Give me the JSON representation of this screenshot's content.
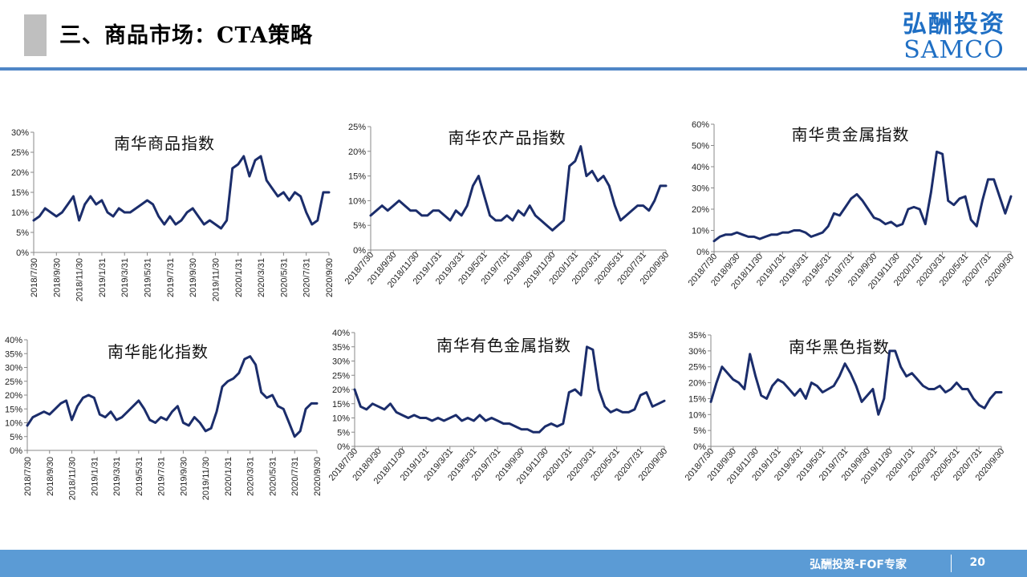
{
  "header": {
    "title": "三、商品市场：CTA策略"
  },
  "logo": {
    "cn": "弘酬投资",
    "en": "SAMCO"
  },
  "footer": {
    "text": "弘酬投资-FOF专家",
    "page": "20"
  },
  "colors": {
    "line": "#1b2d6b",
    "title_bar": "#bfbfbf",
    "top_line": "#4f86c6",
    "footer": "#5b9bd5",
    "logo": "#1f6fc4"
  },
  "chart_data": [
    {
      "type": "line",
      "title": "南华商品指数",
      "ylim": [
        0,
        30
      ],
      "yticks": [
        0,
        5,
        10,
        15,
        20,
        25,
        30
      ],
      "x_labels": [
        "2018/7/30",
        "2018/9/30",
        "2018/11/30",
        "2019/1/31",
        "2019/3/31",
        "2019/5/31",
        "2019/7/31",
        "2019/9/30",
        "2019/11/30",
        "2020/1/31",
        "2020/3/31",
        "2020/5/31",
        "2020/7/31",
        "2020/9/30"
      ],
      "x": [
        0,
        0.25,
        0.5,
        0.75,
        1,
        1.25,
        1.5,
        1.75,
        2,
        2.25,
        2.5,
        2.75,
        3,
        3.25,
        3.5,
        3.75,
        4,
        4.25,
        4.5,
        4.75,
        5,
        5.25,
        5.5,
        5.75,
        6,
        6.25,
        6.5,
        6.75,
        7,
        7.25,
        7.5,
        7.75,
        8,
        8.25,
        8.5,
        8.75,
        9,
        9.25,
        9.5,
        9.75,
        10,
        10.25,
        10.5,
        10.75,
        11,
        11.25,
        11.5,
        11.75,
        12,
        12.25,
        12.5,
        12.75,
        13
      ],
      "values": [
        8,
        9,
        11,
        10,
        9,
        10,
        12,
        14,
        8,
        12,
        14,
        12,
        13,
        10,
        9,
        11,
        10,
        10,
        11,
        12,
        13,
        12,
        9,
        7,
        9,
        7,
        8,
        10,
        11,
        9,
        7,
        8,
        7,
        6,
        8,
        21,
        22,
        24,
        19,
        23,
        24,
        18,
        16,
        14,
        15,
        13,
        15,
        14,
        10,
        7,
        8,
        15,
        15
      ]
    },
    {
      "type": "line",
      "title": "南华农产品指数",
      "ylim": [
        0,
        25
      ],
      "yticks": [
        0,
        5,
        10,
        15,
        20,
        25
      ],
      "x_labels": [
        "2018/7/30",
        "2018/9/30",
        "2018/11/30",
        "2019/1/31",
        "2019/3/31",
        "2019/5/31",
        "2019/7/31",
        "2019/9/30",
        "2019/11/30",
        "2020/1/31",
        "2020/3/31",
        "2020/5/31",
        "2020/7/31",
        "2020/9/30"
      ],
      "x": [
        0,
        0.25,
        0.5,
        0.75,
        1,
        1.25,
        1.5,
        1.75,
        2,
        2.25,
        2.5,
        2.75,
        3,
        3.25,
        3.5,
        3.75,
        4,
        4.25,
        4.5,
        4.75,
        5,
        5.25,
        5.5,
        5.75,
        6,
        6.25,
        6.5,
        6.75,
        7,
        7.25,
        7.5,
        7.75,
        8,
        8.25,
        8.5,
        8.75,
        9,
        9.25,
        9.5,
        9.75,
        10,
        10.25,
        10.5,
        10.75,
        11,
        11.25,
        11.5,
        11.75,
        12,
        12.25,
        12.5,
        12.75,
        13
      ],
      "values": [
        7,
        8,
        9,
        8,
        9,
        10,
        9,
        8,
        8,
        7,
        7,
        8,
        8,
        7,
        6,
        8,
        7,
        9,
        13,
        15,
        11,
        7,
        6,
        6,
        7,
        6,
        8,
        7,
        9,
        7,
        6,
        5,
        4,
        5,
        6,
        17,
        18,
        21,
        15,
        16,
        14,
        15,
        13,
        9,
        6,
        7,
        8,
        9,
        9,
        8,
        10,
        13,
        13
      ]
    },
    {
      "type": "line",
      "title": "南华贵金属指数",
      "ylim": [
        0,
        60
      ],
      "yticks": [
        0,
        10,
        20,
        30,
        40,
        50,
        60
      ],
      "x_labels": [
        "2018/7/30",
        "2018/9/30",
        "2018/11/30",
        "2019/1/31",
        "2019/3/31",
        "2019/5/31",
        "2019/7/31",
        "2019/9/30",
        "2019/11/30",
        "2020/1/31",
        "2020/3/31",
        "2020/5/31",
        "2020/7/31",
        "2020/9/30"
      ],
      "x": [
        0,
        0.25,
        0.5,
        0.75,
        1,
        1.25,
        1.5,
        1.75,
        2,
        2.25,
        2.5,
        2.75,
        3,
        3.25,
        3.5,
        3.75,
        4,
        4.25,
        4.5,
        4.75,
        5,
        5.25,
        5.5,
        5.75,
        6,
        6.25,
        6.5,
        6.75,
        7,
        7.25,
        7.5,
        7.75,
        8,
        8.25,
        8.5,
        8.75,
        9,
        9.25,
        9.5,
        9.75,
        10,
        10.25,
        10.5,
        10.75,
        11,
        11.25,
        11.5,
        11.75,
        12,
        12.25,
        12.5,
        12.75,
        13
      ],
      "values": [
        5,
        7,
        8,
        8,
        9,
        8,
        7,
        7,
        6,
        7,
        8,
        8,
        9,
        9,
        10,
        10,
        9,
        7,
        8,
        9,
        12,
        18,
        17,
        21,
        25,
        27,
        24,
        20,
        16,
        15,
        13,
        14,
        12,
        13,
        20,
        21,
        20,
        13,
        28,
        47,
        46,
        24,
        22,
        25,
        26,
        15,
        12,
        24,
        34,
        34,
        26,
        18,
        26
      ]
    },
    {
      "type": "line",
      "title": "南华能化指数",
      "ylim": [
        0,
        40
      ],
      "yticks": [
        0,
        5,
        10,
        15,
        20,
        25,
        30,
        35,
        40
      ],
      "x_labels": [
        "2018/7/30",
        "2018/9/30",
        "2018/11/30",
        "2019/1/31",
        "2019/3/31",
        "2019/5/31",
        "2019/7/31",
        "2019/9/30",
        "2019/11/30",
        "2020/1/31",
        "2020/3/31",
        "2020/5/31",
        "2020/7/31",
        "2020/9/30"
      ],
      "x": [
        0,
        0.25,
        0.5,
        0.75,
        1,
        1.25,
        1.5,
        1.75,
        2,
        2.25,
        2.5,
        2.75,
        3,
        3.25,
        3.5,
        3.75,
        4,
        4.25,
        4.5,
        4.75,
        5,
        5.25,
        5.5,
        5.75,
        6,
        6.25,
        6.5,
        6.75,
        7,
        7.25,
        7.5,
        7.75,
        8,
        8.25,
        8.5,
        8.75,
        9,
        9.25,
        9.5,
        9.75,
        10,
        10.25,
        10.5,
        10.75,
        11,
        11.25,
        11.5,
        11.75,
        12,
        12.25,
        12.5,
        12.75,
        13
      ],
      "values": [
        9,
        12,
        13,
        14,
        13,
        15,
        17,
        18,
        11,
        16,
        19,
        20,
        19,
        13,
        12,
        14,
        11,
        12,
        14,
        16,
        18,
        15,
        11,
        10,
        12,
        11,
        14,
        16,
        10,
        9,
        12,
        10,
        7,
        8,
        14,
        23,
        25,
        26,
        28,
        33,
        34,
        31,
        21,
        19,
        20,
        16,
        15,
        10,
        5,
        7,
        15,
        17,
        17
      ]
    },
    {
      "type": "line",
      "title": "南华有色金属指数",
      "ylim": [
        0,
        40
      ],
      "yticks": [
        0,
        5,
        10,
        15,
        20,
        25,
        30,
        35,
        40
      ],
      "x_labels": [
        "2018/7/30",
        "2018/9/30",
        "2018/11/30",
        "2019/1/31",
        "2019/3/31",
        "2019/5/31",
        "2019/7/31",
        "2019/9/30",
        "2019/11/30",
        "2020/1/31",
        "2020/3/31",
        "2020/5/31",
        "2020/7/31",
        "2020/9/30"
      ],
      "x": [
        0,
        0.25,
        0.5,
        0.75,
        1,
        1.25,
        1.5,
        1.75,
        2,
        2.25,
        2.5,
        2.75,
        3,
        3.25,
        3.5,
        3.75,
        4,
        4.25,
        4.5,
        4.75,
        5,
        5.25,
        5.5,
        5.75,
        6,
        6.25,
        6.5,
        6.75,
        7,
        7.25,
        7.5,
        7.75,
        8,
        8.25,
        8.5,
        8.75,
        9,
        9.25,
        9.5,
        9.75,
        10,
        10.25,
        10.5,
        10.75,
        11,
        11.25,
        11.5,
        11.75,
        12,
        12.25,
        12.5,
        12.75,
        13
      ],
      "values": [
        20,
        14,
        13,
        15,
        14,
        13,
        15,
        12,
        11,
        10,
        11,
        10,
        10,
        9,
        10,
        9,
        10,
        11,
        9,
        10,
        9,
        11,
        9,
        10,
        9,
        8,
        8,
        7,
        6,
        6,
        5,
        5,
        7,
        8,
        7,
        8,
        19,
        20,
        18,
        35,
        34,
        20,
        14,
        12,
        13,
        12,
        12,
        13,
        18,
        19,
        14,
        15,
        16
      ]
    },
    {
      "type": "line",
      "title": "南华黑色指数",
      "ylim": [
        0,
        35
      ],
      "yticks": [
        0,
        5,
        10,
        15,
        20,
        25,
        30,
        35
      ],
      "x_labels": [
        "2018/7/30",
        "2018/9/30",
        "2018/11/30",
        "2019/1/31",
        "2019/3/31",
        "2019/5/31",
        "2019/7/31",
        "2019/9/30",
        "2019/11/30",
        "2020/1/31",
        "2020/3/31",
        "2020/5/31",
        "2020/7/31",
        "2020/9/30"
      ],
      "x": [
        0,
        0.25,
        0.5,
        0.75,
        1,
        1.25,
        1.5,
        1.75,
        2,
        2.25,
        2.5,
        2.75,
        3,
        3.25,
        3.5,
        3.75,
        4,
        4.25,
        4.5,
        4.75,
        5,
        5.25,
        5.5,
        5.75,
        6,
        6.25,
        6.5,
        6.75,
        7,
        7.25,
        7.5,
        7.75,
        8,
        8.25,
        8.5,
        8.75,
        9,
        9.25,
        9.5,
        9.75,
        10,
        10.25,
        10.5,
        10.75,
        11,
        11.25,
        11.5,
        11.75,
        12,
        12.25,
        12.5,
        12.75,
        13
      ],
      "values": [
        14,
        20,
        25,
        23,
        21,
        20,
        18,
        29,
        22,
        16,
        15,
        19,
        21,
        20,
        18,
        16,
        18,
        15,
        20,
        19,
        17,
        18,
        19,
        22,
        26,
        23,
        19,
        14,
        16,
        18,
        10,
        15,
        30,
        30,
        25,
        22,
        23,
        21,
        19,
        18,
        18,
        19,
        17,
        18,
        20,
        18,
        18,
        15,
        13,
        12,
        15,
        17,
        17
      ]
    }
  ]
}
